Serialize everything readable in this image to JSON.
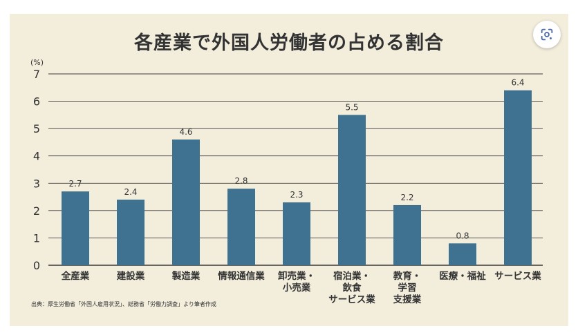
{
  "title": "各産業で外国人労働者の占める割合",
  "footnote": "出典：厚生労働省「外国人雇用状況」、総務省「労働力調査」より筆者作成",
  "lens_icon": "lens-icon",
  "colors": {
    "background": "#f3eddc",
    "bar": "#3e7290",
    "text": "#333333",
    "grid": "#3a3a3a"
  },
  "chart_data": {
    "type": "bar",
    "title": "各産業で外国人労働者の占める割合",
    "unit_label": "(%)",
    "xlabel": "",
    "ylabel": "",
    "ylim": [
      0,
      7
    ],
    "yticks": [
      "0",
      "1",
      "2",
      "3",
      "4",
      "5",
      "6",
      "7"
    ],
    "grid": true,
    "categories": [
      [
        "全産業"
      ],
      [
        "建設業"
      ],
      [
        "製造業"
      ],
      [
        "情報通信業"
      ],
      [
        "卸売業・",
        "小売業"
      ],
      [
        "宿泊業・",
        "飲食",
        "サービス業"
      ],
      [
        "教育・",
        "学習",
        "支援業"
      ],
      [
        "医療・福祉"
      ],
      [
        "サービス業"
      ]
    ],
    "values": [
      2.7,
      2.4,
      4.6,
      2.8,
      2.3,
      5.5,
      2.2,
      0.8,
      6.4
    ],
    "value_labels": [
      "2.7",
      "2.4",
      "4.6",
      "2.8",
      "2.3",
      "5.5",
      "2.2",
      "0.8",
      "6.4"
    ]
  }
}
